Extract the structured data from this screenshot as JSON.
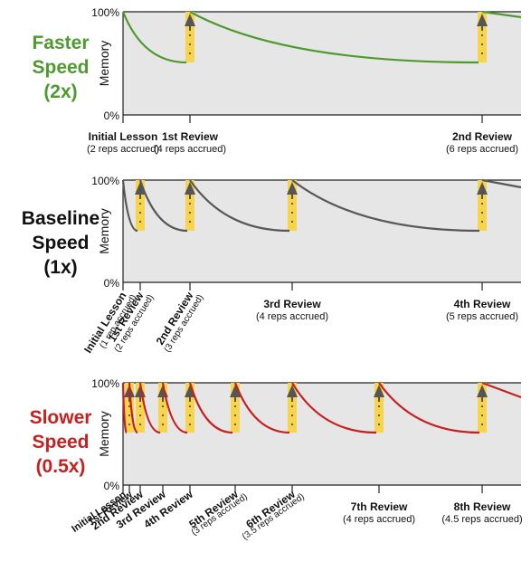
{
  "y_top_label": "100%",
  "y_bottom_label": "0%",
  "y_axis_label": "Memory",
  "colors": {
    "faster": "#4e9a2e",
    "baseline": "#585858",
    "slower": "#c81f1f",
    "marker": "#f7d44c",
    "plot_bg": "#e6e6e6"
  },
  "panels": [
    {
      "id": "faster",
      "speed": "Faster",
      "word": "Speed",
      "multiplier": "(2x)",
      "reviews": [
        {
          "at": 0,
          "title": "Initial Lesson",
          "sub": "(2 reps accrued)"
        },
        {
          "at": 1,
          "title": "1st Review",
          "sub": "(4 reps accrued)"
        },
        {
          "at": 2,
          "title": "2nd Review",
          "sub": "(6 reps accrued)"
        }
      ]
    },
    {
      "id": "baseline",
      "speed": "Baseline",
      "word": "Speed",
      "multiplier": "(1x)",
      "reviews": [
        {
          "at": 0,
          "title": "Initial Lesson",
          "sub": "(1 rep accrued)"
        },
        {
          "at": 1,
          "title": "1st Review",
          "sub": "(2 reps accrued)"
        },
        {
          "at": 2,
          "title": "2nd Review",
          "sub": "(3 reps accrued)"
        },
        {
          "at": 3,
          "title": "3rd Review",
          "sub": "(4 reps accrued)"
        },
        {
          "at": 4,
          "title": "4th Review",
          "sub": "(5 reps accrued)"
        }
      ]
    },
    {
      "id": "slower",
      "speed": "Slower",
      "word": "Speed",
      "multiplier": "(0.5x)",
      "reviews": [
        {
          "at": 0,
          "title": "Initial Lesson",
          "sub": ""
        },
        {
          "at": 1,
          "title": "1st Review",
          "sub": ""
        },
        {
          "at": 2,
          "title": "2nd Review",
          "sub": ""
        },
        {
          "at": 3,
          "title": "3rd Review",
          "sub": ""
        },
        {
          "at": 4,
          "title": "4th Review",
          "sub": ""
        },
        {
          "at": 5,
          "title": "5th Review",
          "sub": "(3 reps accrued)"
        },
        {
          "at": 6,
          "title": "6th Review",
          "sub": "(3.5 reps accrued)"
        },
        {
          "at": 7,
          "title": "7th Review",
          "sub": "(4 reps accrued)"
        },
        {
          "at": 8,
          "title": "8th Review",
          "sub": "(4.5 reps accrued)"
        }
      ]
    }
  ]
}
